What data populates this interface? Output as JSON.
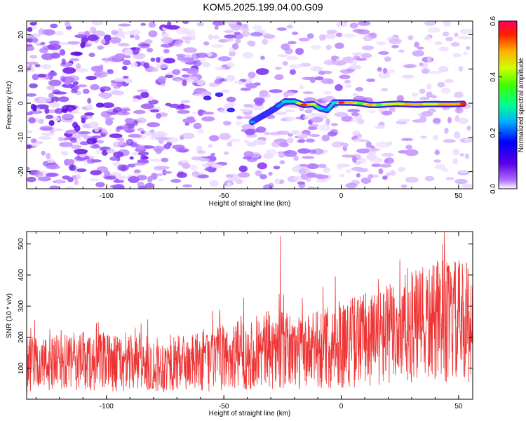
{
  "title": "KOM5.2025.199.04.00.G09",
  "chart_data": [
    {
      "type": "heatmap",
      "xlabel": "Height of straight line (km)",
      "ylabel": "Frequency (Hz)",
      "xlim": [
        -134,
        56
      ],
      "ylim": [
        -25,
        24
      ],
      "xticks": [
        -100,
        -50,
        0,
        50
      ],
      "yticks": [
        -20,
        -10,
        0,
        10,
        20
      ],
      "colorbar": {
        "label": "Normalized spectral amplitude",
        "range": [
          0.0,
          0.6
        ],
        "ticks": [
          0.0,
          0.2,
          0.4,
          0.6
        ]
      },
      "signal_track": [
        {
          "x": -38,
          "y": -5.5,
          "amp": 0.22
        },
        {
          "x": -33,
          "y": -3.5,
          "amp": 0.15
        },
        {
          "x": -28,
          "y": -1.5,
          "amp": 0.2
        },
        {
          "x": -24,
          "y": 0.5,
          "amp": 0.3
        },
        {
          "x": -20,
          "y": 0.5,
          "amp": 0.35
        },
        {
          "x": -16,
          "y": -0.5,
          "amp": 0.52
        },
        {
          "x": -12,
          "y": -0.3,
          "amp": 0.42
        },
        {
          "x": -9,
          "y": -1.5,
          "amp": 0.3
        },
        {
          "x": -6,
          "y": -2.0,
          "amp": 0.25
        },
        {
          "x": -3,
          "y": 0.2,
          "amp": 0.32
        },
        {
          "x": 0,
          "y": 0.2,
          "amp": 0.52
        },
        {
          "x": 4,
          "y": 0.2,
          "amp": 0.48
        },
        {
          "x": 8,
          "y": 0.0,
          "amp": 0.4
        },
        {
          "x": 12,
          "y": -0.5,
          "amp": 0.5
        },
        {
          "x": 16,
          "y": -0.5,
          "amp": 0.4
        },
        {
          "x": 20,
          "y": -0.3,
          "amp": 0.45
        },
        {
          "x": 24,
          "y": -0.2,
          "amp": 0.42
        },
        {
          "x": 28,
          "y": -0.3,
          "amp": 0.46
        },
        {
          "x": 32,
          "y": -0.4,
          "amp": 0.5
        },
        {
          "x": 36,
          "y": -0.3,
          "amp": 0.44
        },
        {
          "x": 40,
          "y": -0.3,
          "amp": 0.42
        },
        {
          "x": 44,
          "y": -0.3,
          "amp": 0.5
        },
        {
          "x": 48,
          "y": -0.3,
          "amp": 0.48
        },
        {
          "x": 52,
          "y": -0.2,
          "amp": 0.52
        }
      ]
    },
    {
      "type": "line",
      "xlabel": "Height of straight line (km)",
      "ylabel": "SNR (10 * v/v)",
      "xlim": [
        -134,
        56
      ],
      "ylim": [
        0,
        540
      ],
      "xticks": [
        -100,
        -50,
        0,
        50
      ],
      "yticks": [
        100,
        200,
        300,
        400,
        500
      ],
      "color": "#ee3333",
      "x": [
        -134,
        -120,
        -105,
        -90,
        -75,
        -60,
        -45,
        -30,
        -15,
        0,
        15,
        30,
        45,
        56
      ],
      "y": [
        110,
        115,
        120,
        115,
        110,
        120,
        140,
        160,
        150,
        180,
        200,
        230,
        250,
        250
      ],
      "peaks": [
        {
          "x": -26,
          "y": 525
        },
        {
          "x": 44,
          "y": 540
        },
        {
          "x": 25,
          "y": 450
        }
      ]
    }
  ]
}
